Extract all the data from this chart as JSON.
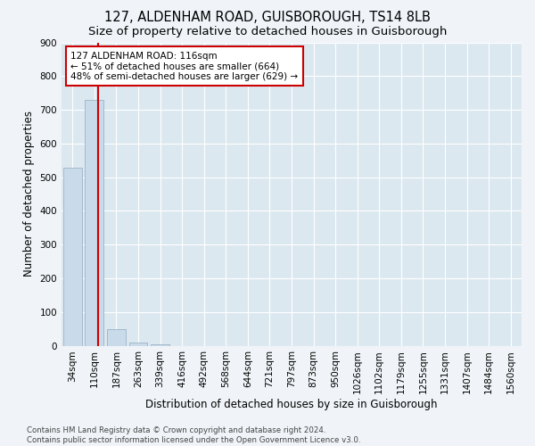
{
  "title1": "127, ALDENHAM ROAD, GUISBOROUGH, TS14 8LB",
  "title2": "Size of property relative to detached houses in Guisborough",
  "xlabel": "Distribution of detached houses by size in Guisborough",
  "ylabel": "Number of detached properties",
  "footnote": "Contains HM Land Registry data © Crown copyright and database right 2024.\nContains public sector information licensed under the Open Government Licence v3.0.",
  "categories": [
    "34sqm",
    "110sqm",
    "187sqm",
    "263sqm",
    "339sqm",
    "416sqm",
    "492sqm",
    "568sqm",
    "644sqm",
    "721sqm",
    "797sqm",
    "873sqm",
    "950sqm",
    "1026sqm",
    "1102sqm",
    "1179sqm",
    "1255sqm",
    "1331sqm",
    "1407sqm",
    "1484sqm",
    "1560sqm"
  ],
  "bar_values": [
    528,
    728,
    48,
    8,
    5,
    0,
    0,
    0,
    0,
    0,
    0,
    0,
    0,
    0,
    0,
    0,
    0,
    0,
    0,
    0,
    0
  ],
  "bar_color": "#c9daea",
  "bar_edge_color": "#9ab4c8",
  "property_line_x": 1.18,
  "property_line_color": "#cc0000",
  "annotation_line1": "127 ALDENHAM ROAD: 116sqm",
  "annotation_line2": "← 51% of detached houses are smaller (664)",
  "annotation_line3": "48% of semi-detached houses are larger (629) →",
  "annotation_box_color": "#cc0000",
  "ylim": [
    0,
    900
  ],
  "yticks": [
    0,
    100,
    200,
    300,
    400,
    500,
    600,
    700,
    800,
    900
  ],
  "fig_background_color": "#f0f4f8",
  "plot_bg_color": "#dce8f0",
  "grid_color": "#ffffff",
  "title_fontsize": 10.5,
  "subtitle_fontsize": 9.5,
  "axis_label_fontsize": 8.5,
  "tick_fontsize": 7.5,
  "footnote_fontsize": 6.2
}
